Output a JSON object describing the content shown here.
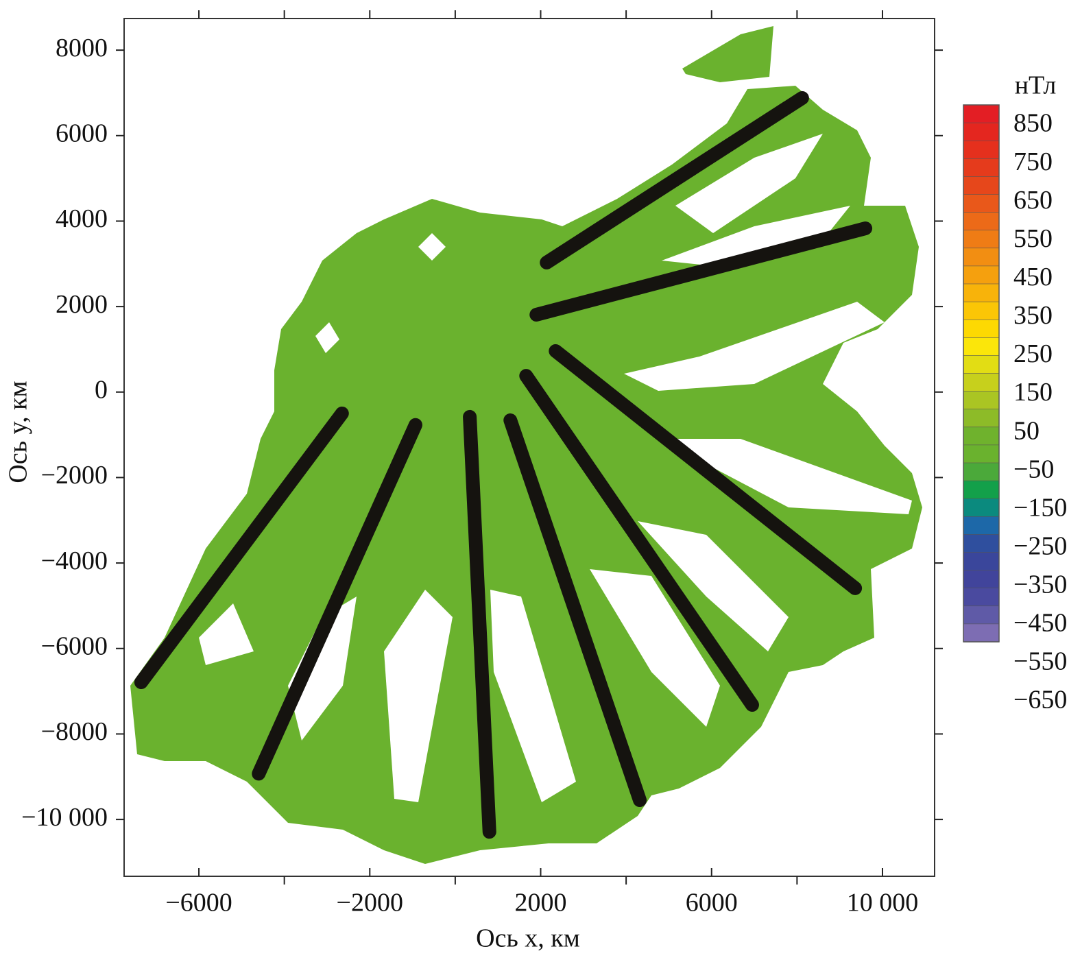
{
  "chart_data": {
    "type": "contour",
    "xlabel": "Ось x, км",
    "ylabel": "Ось y, км",
    "xlim": [
      -7750,
      11220
    ],
    "ylim": [
      -11330,
      8740
    ],
    "xticks": [
      {
        "value": -6000,
        "label": "−6000"
      },
      {
        "value": -2000,
        "label": "−2000"
      },
      2000,
      6000,
      {
        "value": 10000,
        "label": "10 000"
      }
    ],
    "xminor_ticks": [
      -4000,
      0,
      4000,
      8000
    ],
    "yticks": [
      8000,
      6000,
      4000,
      2000,
      0,
      {
        "value": -2000,
        "label": "−2000"
      },
      {
        "value": -4000,
        "label": "−4000"
      },
      {
        "value": -6000,
        "label": "−6000"
      },
      {
        "value": -8000,
        "label": "−8000"
      },
      {
        "value": -10000,
        "label": "−10 000"
      }
    ],
    "field_color": "#6ab22e",
    "series": [
      {
        "color": "#15130f",
        "x": [
          2140,
          8120
        ],
        "y": [
          3030,
          6880
        ]
      },
      {
        "color": "#15130f",
        "x": [
          1900,
          9600
        ],
        "y": [
          1810,
          3830
        ]
      },
      {
        "color": "#15130f",
        "x": [
          2350,
          9360
        ],
        "y": [
          960,
          -4590
        ]
      },
      {
        "color": "#15130f",
        "x": [
          1660,
          6950
        ],
        "y": [
          380,
          -7320
        ]
      },
      {
        "color": "#15130f",
        "x": [
          1290,
          4320
        ],
        "y": [
          -660,
          -9550
        ]
      },
      {
        "color": "#15130f",
        "x": [
          340,
          800
        ],
        "y": [
          -580,
          -10290
        ]
      },
      {
        "color": "#15130f",
        "x": [
          -930,
          -4600
        ],
        "y": [
          -770,
          -8930
        ]
      },
      {
        "color": "#15130f",
        "x": [
          -2650,
          -7350
        ],
        "y": [
          -500,
          -6790
        ]
      }
    ],
    "colorbar": {
      "title": "нТл",
      "ticks": [
        850,
        750,
        650,
        550,
        450,
        350,
        250,
        150,
        50,
        {
          "value": -50,
          "label": "−50"
        },
        {
          "value": -150,
          "label": "−150"
        },
        {
          "value": -250,
          "label": "−250"
        },
        {
          "value": -350,
          "label": "−350"
        },
        {
          "value": -450,
          "label": "−450"
        },
        {
          "value": -550,
          "label": "−550"
        },
        {
          "value": -650,
          "label": "−650"
        }
      ],
      "colors": [
        "#e31e24",
        "#e4261f",
        "#e5301d",
        "#e53b1c",
        "#e6471b",
        "#e9581a",
        "#ec6a18",
        "#ef7c15",
        "#f28e12",
        "#f5a00e",
        "#f8b30a",
        "#fbc606",
        "#fdd902",
        "#fbe60a",
        "#e2dd14",
        "#c7d01c",
        "#aac523",
        "#8dbb28",
        "#6fb22d",
        "#6ab22e",
        "#4ba93a",
        "#13a04a",
        "#0b8a7e",
        "#1d68a8",
        "#2f4f9e",
        "#3a469b",
        "#41449b",
        "#4a4a9f",
        "#5f5aa7",
        "#7d6db3"
      ]
    }
  }
}
